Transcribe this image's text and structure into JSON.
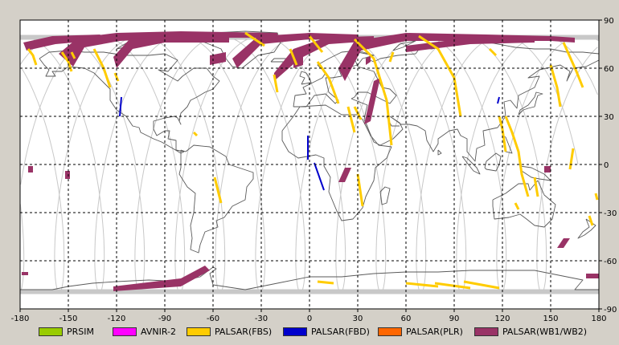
{
  "map": {
    "x_ticks": [
      "-180",
      "-150",
      "-120",
      "-90",
      "-60",
      "-30",
      "0",
      "30",
      "60",
      "90",
      "120",
      "150",
      "180"
    ],
    "y_ticks": [
      "90",
      "60",
      "30",
      "0",
      "-30",
      "-60",
      "-90"
    ],
    "x_range": [
      -180,
      180
    ],
    "y_range": [
      -90,
      90
    ],
    "grid": "dashed every 30 degrees",
    "colors": {
      "background": "#d4d0c8",
      "plot_bg": "#ffffff",
      "coastline": "#5a5a5a",
      "orbit_track": "#c8c8c8",
      "grid": "#000000"
    }
  },
  "legend": {
    "items": [
      {
        "label": "PRSIM",
        "color": "#99cc00"
      },
      {
        "label": "AVNIR-2",
        "color": "#ff00ff"
      },
      {
        "label": "PALSAR(FBS)",
        "color": "#ffcc00"
      },
      {
        "label": "PALSAR(FBD)",
        "color": "#0000cc"
      },
      {
        "label": "PALSAR(PLR)",
        "color": "#ff6600"
      },
      {
        "label": "PALSAR(WB1/WB2)",
        "color": "#993366"
      }
    ]
  }
}
